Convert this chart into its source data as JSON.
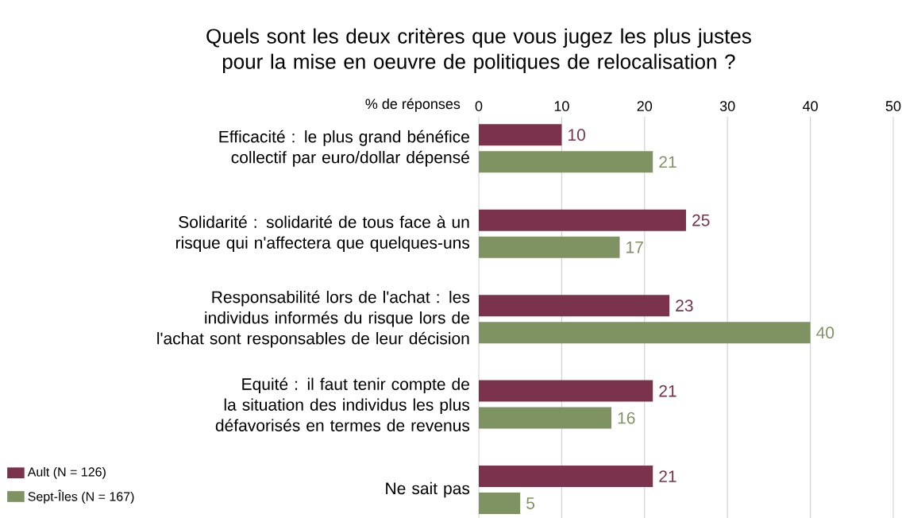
{
  "chart_data": {
    "type": "bar",
    "orientation": "horizontal",
    "title": "Quels sont les deux critères que vous jugez les plus justes pour la mise en oeuvre de politiques de relocalisation ?",
    "xlabel": "% de réponses",
    "categories": [
      "Efficacité : le plus grand bénéfice collectif par euro/dollar dépensé",
      "Solidarité : solidarité de tous face à un risque qui n'affectera que quelques-uns",
      "Responsabilité lors de l'achat : les individus informés du risque lors de l'achat sont responsables de leur décision",
      "Equité : il faut tenir compte de la situation des individus les plus défavorisés en termes de revenus",
      "Ne sait pas"
    ],
    "series": [
      {
        "name": "Ault (N = 126)",
        "color": "#7b334d",
        "values": [
          10,
          25,
          23,
          21,
          21
        ]
      },
      {
        "name": "Sept-Îles (N = 167)",
        "color": "#7f9262",
        "values": [
          21,
          17,
          40,
          16,
          5
        ]
      }
    ],
    "xlim": [
      0,
      50
    ],
    "xticks": [
      0,
      10,
      20,
      30,
      40,
      50
    ],
    "grid": "x",
    "legend": "bottom left",
    "data_labels": true
  }
}
